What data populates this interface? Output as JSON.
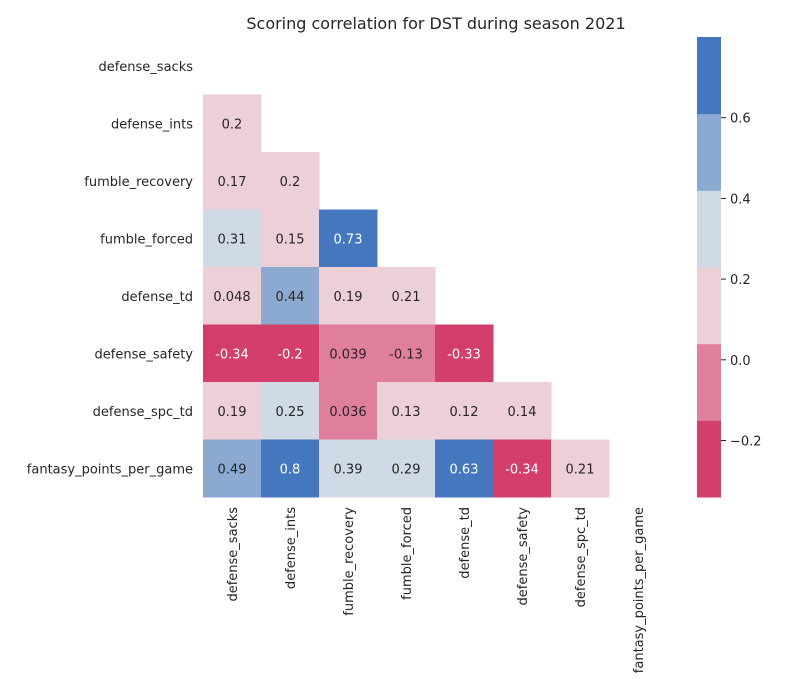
{
  "chart_data": {
    "type": "heatmap",
    "title": "Scoring correlation for DST during season 2021",
    "row_labels": [
      "defense_sacks",
      "defense_ints",
      "fumble_recovery",
      "fumble_forced",
      "defense_td",
      "defense_safety",
      "defense_spc_td",
      "fantasy_points_per_game"
    ],
    "col_labels": [
      "defense_sacks",
      "defense_ints",
      "fumble_recovery",
      "fumble_forced",
      "defense_td",
      "defense_safety",
      "defense_spc_td",
      "fantasy_points_per_game"
    ],
    "mask": "upper-triangle-and-diagonal",
    "values": [
      [
        null,
        null,
        null,
        null,
        null,
        null,
        null,
        null
      ],
      [
        0.2,
        null,
        null,
        null,
        null,
        null,
        null,
        null
      ],
      [
        0.17,
        0.2,
        null,
        null,
        null,
        null,
        null,
        null
      ],
      [
        0.31,
        0.15,
        0.73,
        null,
        null,
        null,
        null,
        null
      ],
      [
        0.048,
        0.44,
        0.19,
        0.21,
        null,
        null,
        null,
        null
      ],
      [
        -0.34,
        -0.2,
        0.039,
        -0.13,
        -0.33,
        null,
        null,
        null
      ],
      [
        0.19,
        0.25,
        0.036,
        0.13,
        0.12,
        0.14,
        null,
        null
      ],
      [
        0.49,
        0.8,
        0.39,
        0.29,
        0.63,
        -0.34,
        0.21,
        null
      ]
    ],
    "value_labels": [
      [
        null,
        null,
        null,
        null,
        null,
        null,
        null,
        null
      ],
      [
        "0.2",
        null,
        null,
        null,
        null,
        null,
        null,
        null
      ],
      [
        "0.17",
        "0.2",
        null,
        null,
        null,
        null,
        null,
        null
      ],
      [
        "0.31",
        "0.15",
        "0.73",
        null,
        null,
        null,
        null,
        null
      ],
      [
        "0.048",
        "0.44",
        "0.19",
        "0.21",
        null,
        null,
        null,
        null
      ],
      [
        "-0.34",
        "-0.2",
        "0.039",
        "-0.13",
        "-0.33",
        null,
        null,
        null
      ],
      [
        "0.19",
        "0.25",
        "0.036",
        "0.13",
        "0.12",
        "0.14",
        null,
        null
      ],
      [
        "0.49",
        "0.8",
        "0.39",
        "0.29",
        "0.63",
        "-0.34",
        "0.21",
        null
      ]
    ],
    "colorbar": {
      "vmin": -0.34,
      "vmax": 0.8,
      "ticks": [
        -0.2,
        0.0,
        0.2,
        0.4,
        0.6
      ],
      "tick_labels": [
        "−0.2",
        "0.0",
        "0.2",
        "0.4",
        "0.6"
      ],
      "colors": [
        "#d33f6a",
        "#e07f9c",
        "#edcfd8",
        "#cfdae6",
        "#8ba9d1",
        "#4577be"
      ]
    },
    "grid": false,
    "legend": "colorbar-right"
  }
}
